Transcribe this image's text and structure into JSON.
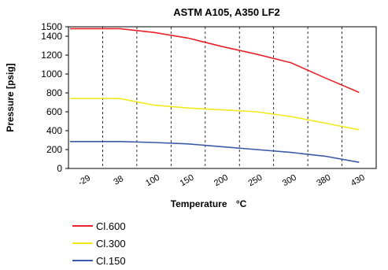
{
  "chart_data": {
    "type": "line",
    "title": "ASTM A105, A350 LF2",
    "xlabel": "Temperature",
    "xlabel_unit": "°C",
    "ylabel": "Pressure [psig]",
    "ylim": [
      0,
      1500
    ],
    "yticks": [
      0,
      200,
      400,
      600,
      800,
      1000,
      1200,
      1400,
      1500
    ],
    "categories": [
      "-29",
      "38",
      "100",
      "150",
      "200",
      "250",
      "300",
      "380",
      "430"
    ],
    "grid": "vertical",
    "legend_position": "bottom-left",
    "series": [
      {
        "name": "Cl.600",
        "color": "#e8232a",
        "values": [
          1480,
          1480,
          1440,
          1380,
          1290,
          1210,
          1120,
          960,
          805
        ]
      },
      {
        "name": "Cl.300",
        "color": "#f2ea1c",
        "values": [
          740,
          740,
          670,
          640,
          620,
          600,
          550,
          480,
          410
        ]
      },
      {
        "name": "Cl.150",
        "color": "#3a5aa8",
        "values": [
          285,
          285,
          275,
          260,
          230,
          200,
          170,
          130,
          65
        ]
      }
    ]
  }
}
